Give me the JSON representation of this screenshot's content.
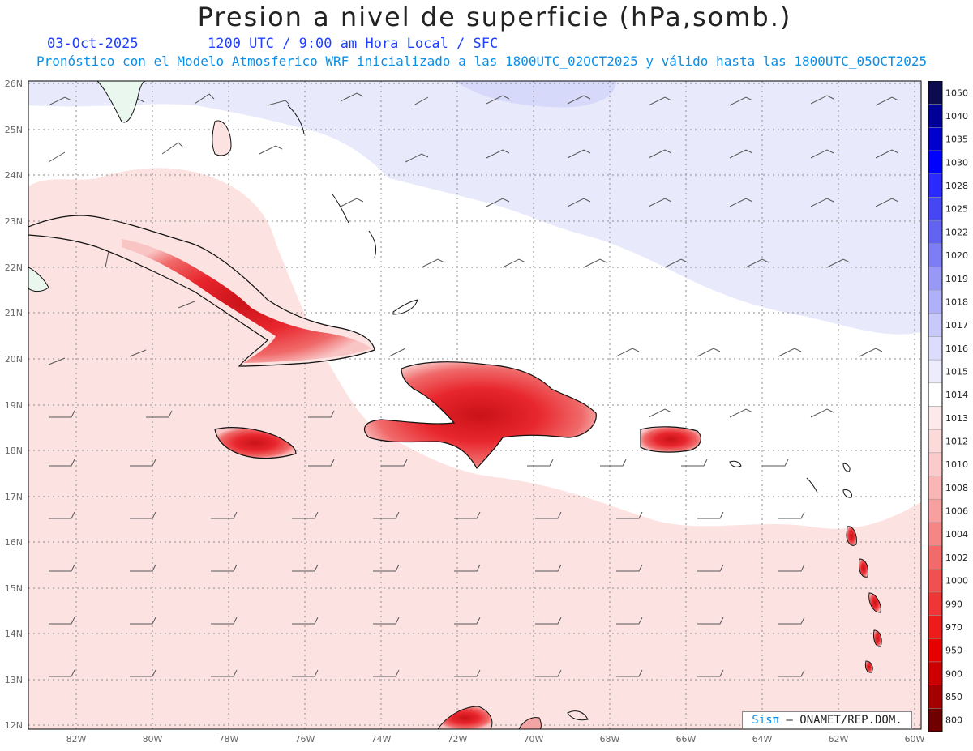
{
  "header": {
    "title": "Presion a nivel de superficie (hPa,somb.)",
    "date": "03-Oct-2025",
    "time": "1200 UTC / 9:00 am Hora Local / SFC",
    "forecast_note": "Pronóstico con el Modelo Atmosferico WRF inicializado a las 1800UTC_02OCT2025 y válido hasta las  1800UTC_05OCT2025"
  },
  "map": {
    "lat_labels": [
      "26N",
      "25N",
      "24N",
      "23N",
      "22N",
      "21N",
      "20N",
      "19N",
      "18N",
      "17N",
      "16N",
      "15N",
      "14N",
      "13N",
      "12N"
    ],
    "lon_labels": [
      "82W",
      "80W",
      "78W",
      "76W",
      "74W",
      "72W",
      "70W",
      "68W",
      "66W",
      "64W",
      "62W",
      "60W"
    ],
    "colors": {
      "land_fill": "#e9f7ee",
      "high_pressure": "#e3e5fb",
      "mid_pressure": "#fde2e2",
      "low_pressure": "#e8232a",
      "coast": "#000000",
      "grid": "#8c8c8c"
    }
  },
  "colorbar": {
    "levels": [
      "1050",
      "1040",
      "1035",
      "1030",
      "1028",
      "1025",
      "1022",
      "1020",
      "1019",
      "1018",
      "1017",
      "1016",
      "1015",
      "1014",
      "1013",
      "1012",
      "1010",
      "1008",
      "1006",
      "1004",
      "1002",
      "1000",
      "990",
      "970",
      "950",
      "900",
      "850",
      "800"
    ],
    "colors": [
      "#0b0b4d",
      "#000099",
      "#0000cc",
      "#0000ff",
      "#2a2aff",
      "#4646f5",
      "#6363f2",
      "#7e7ef4",
      "#9898f5",
      "#b0b0f8",
      "#c8c8fa",
      "#dcdcfc",
      "#ececfd",
      "#ffffff",
      "#fde9e9",
      "#fcdada",
      "#fbcaca",
      "#f9b6b6",
      "#f7a0a0",
      "#f58686",
      "#f36a6a",
      "#f15050",
      "#ef3535",
      "#ed1c1c",
      "#e60000",
      "#cc0000",
      "#a50000",
      "#6e0000"
    ]
  },
  "credit": {
    "brand": "Sisπ",
    "text": " – ONAMET/REP.DOM."
  }
}
